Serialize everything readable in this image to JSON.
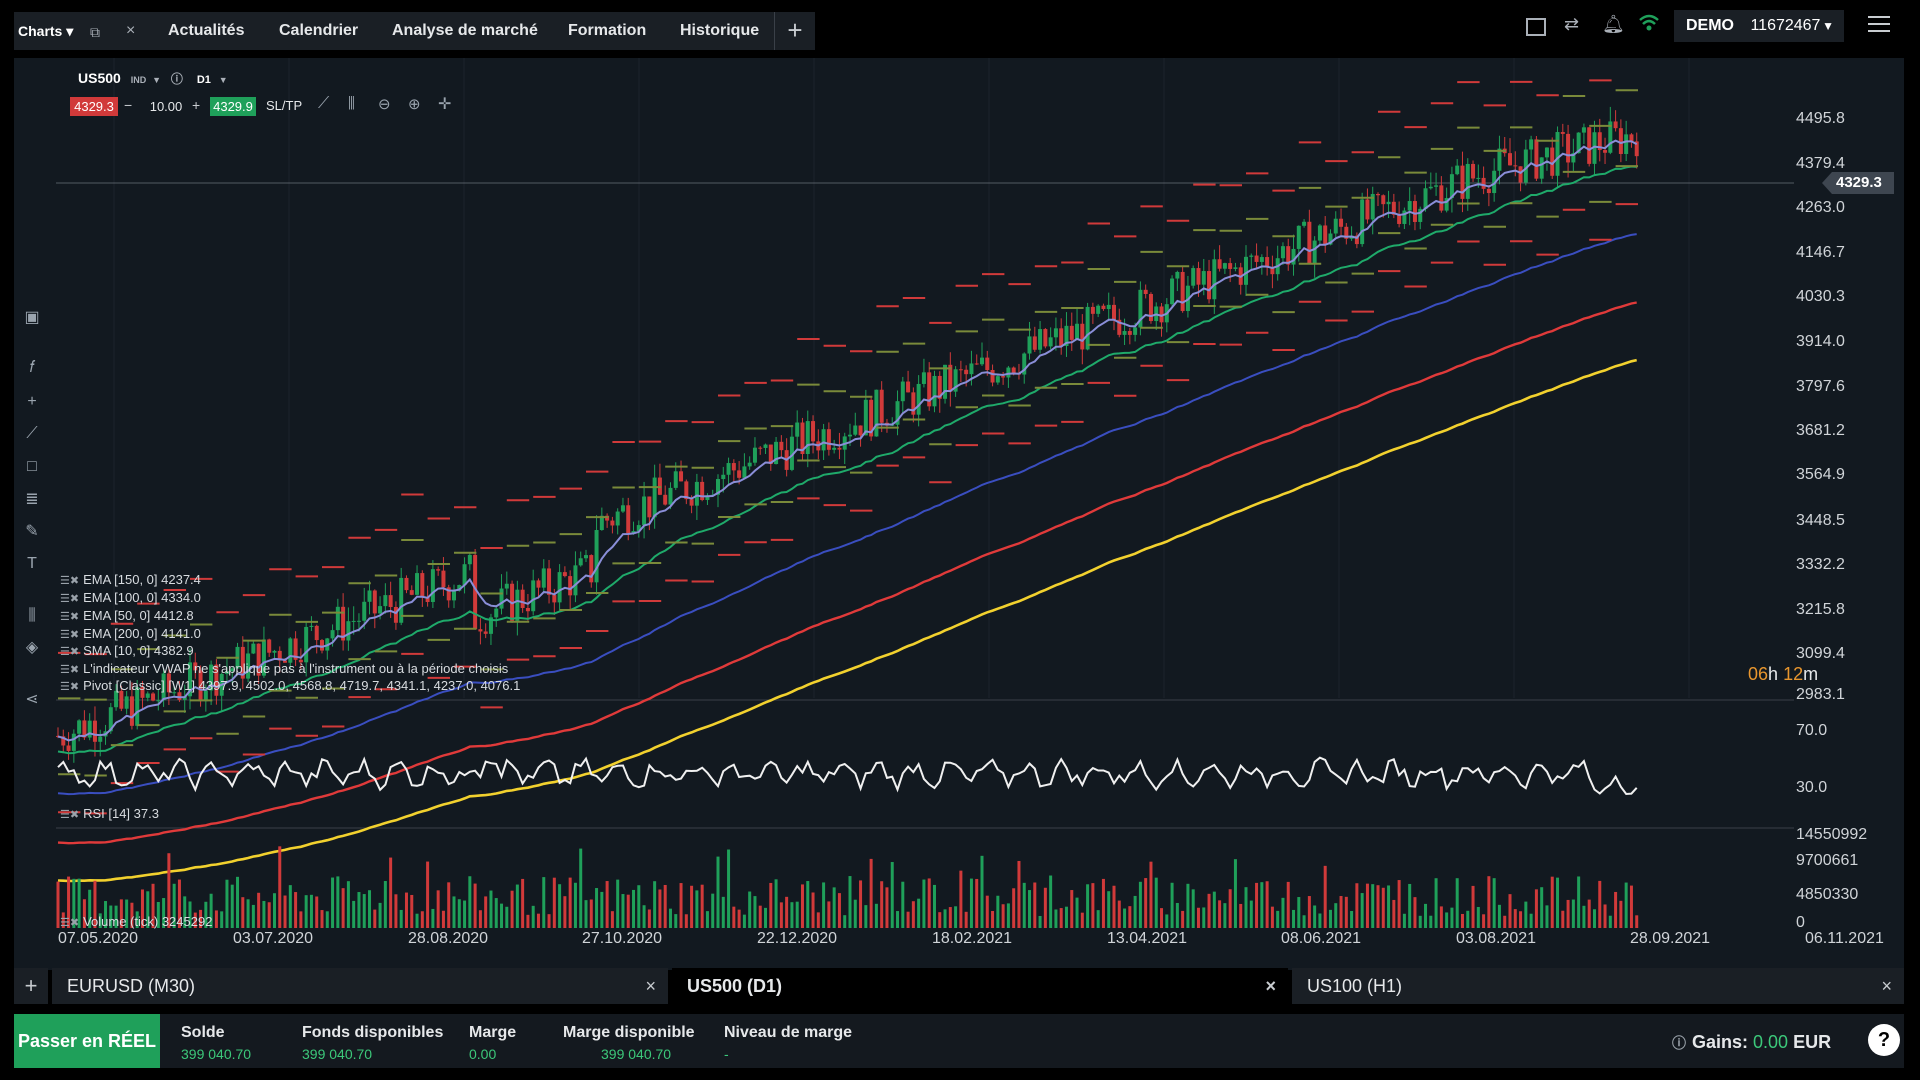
{
  "header": {
    "charts_selector": "Charts",
    "nav": [
      "Actualités",
      "Calendrier",
      "Analyse de marché",
      "Formation",
      "Historique"
    ],
    "account_type": "DEMO",
    "account_number": "11672467"
  },
  "symbol": {
    "name": "US500",
    "type": "IND",
    "timeframe": "D1",
    "sell_price": "4329.3",
    "volume": "10.00",
    "buy_price": "4329.9",
    "sltp": "SL/TP"
  },
  "price_axis": [
    "4495.8",
    "4379.4",
    "4263.0",
    "4146.7",
    "4030.3",
    "3914.0",
    "3797.6",
    "3681.2",
    "3564.9",
    "3448.5",
    "3332.2",
    "3215.8",
    "3099.4",
    "2983.1"
  ],
  "current_price": "4329.3",
  "candle_timer": {
    "hours": "06",
    "h": "h",
    "minutes": "12",
    "m": "m"
  },
  "date_axis": [
    "07.05.2020",
    "03.07.2020",
    "28.08.2020",
    "27.10.2020",
    "22.12.2020",
    "18.02.2021",
    "13.04.2021",
    "08.06.2021",
    "03.08.2021",
    "28.09.2021",
    "06.11.2021"
  ],
  "legend": [
    "EMA [150, 0] 4237.4",
    "EMA [100, 0] 4334.0",
    "EMA [50, 0] 4412.8",
    "EMA [200, 0] 4141.0",
    "SMA [10, 0] 4382.9",
    "L'indicateur VWAP ne s'applique pas à l'instrument ou à la période choisis",
    "Pivot [Classic] [W1] 4397.9, 4502.0, 4568.8, 4719.7, 4341.1, 4237.0, 4076.1"
  ],
  "rsi": {
    "label": "RSI [14] 37.3",
    "axis": [
      "70.0",
      "30.0"
    ]
  },
  "volume": {
    "label": "Volume (tick) 3245292",
    "axis": [
      "14550992",
      "9700661",
      "4850330",
      "0"
    ]
  },
  "tabs": [
    {
      "label": "EURUSD (M30)"
    },
    {
      "label": "US500 (D1)"
    },
    {
      "label": "US100 (H1)"
    }
  ],
  "status": {
    "live_button": "Passer en RÉEL",
    "balance_label": "Solde",
    "balance": "399 040.70",
    "funds_label": "Fonds disponibles",
    "funds": "399 040.70",
    "margin_label": "Marge",
    "margin": "0.00",
    "free_margin_label": "Marge disponible",
    "free_margin": "399 040.70",
    "margin_level_label": "Niveau de marge",
    "margin_level": "-",
    "gains_label": "Gains:",
    "gains_value": "0.00",
    "gains_currency": "EUR"
  },
  "colors": {
    "up": "#1fa05a",
    "down": "#d13a3a",
    "ema150": "#3a4ec0",
    "ema100": "#1faa6a",
    "sma10": "#8a8ed8",
    "ema50_red": "#e03a3a",
    "ema200_yellow": "#f2d12e",
    "accent": "#1fa05a",
    "timer": "#e8962e"
  }
}
